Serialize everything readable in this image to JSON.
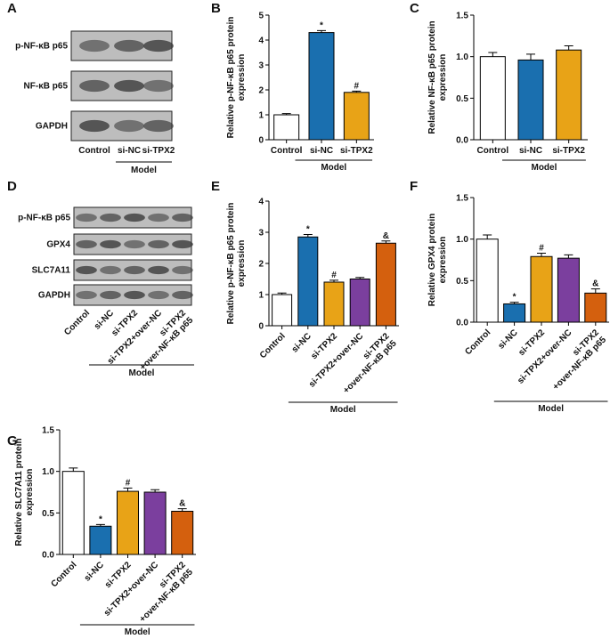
{
  "blots": [
    {
      "panel": "A",
      "rows": [
        "p-NF-κB p65",
        "NF-κB p65",
        "GAPDH"
      ],
      "lanes": [
        "Control",
        "si-NC",
        "si-TPX2"
      ],
      "group_label": "Model"
    },
    {
      "panel": "D",
      "rows": [
        "p-NF-κB p65",
        "GPX4",
        "SLC7A11",
        "GAPDH"
      ],
      "lanes": [
        "Control",
        "si-NC",
        "si-TPX2",
        "si-TPX2+over-NC",
        "si-TPX2\n+over-NF-κB p65"
      ],
      "group_label": "Model"
    }
  ],
  "chart_data": [
    {
      "type": "bar",
      "panel": "B",
      "y_label": "Relative p-NF-κB p65 protein expression",
      "categories": [
        "Control",
        "si-NC",
        "si-TPX2"
      ],
      "group_label": "Model",
      "values": [
        1.0,
        4.3,
        1.9
      ],
      "errors": [
        0.05,
        0.08,
        0.05
      ],
      "value_annotations": [
        null,
        "*",
        "#"
      ],
      "colors": [
        "#ffffff",
        "#1a6faf",
        "#e8a317"
      ],
      "ylim": [
        0,
        5
      ],
      "yticks": [
        0,
        1,
        2,
        3,
        4,
        5
      ],
      "rotate_labels": false
    },
    {
      "type": "bar",
      "panel": "C",
      "y_label": "Relative NF-κB p65 protein expression",
      "categories": [
        "Control",
        "si-NC",
        "si-TPX2"
      ],
      "group_label": "Model",
      "values": [
        1.0,
        0.96,
        1.08
      ],
      "errors": [
        0.05,
        0.07,
        0.05
      ],
      "value_annotations": [
        null,
        null,
        null
      ],
      "colors": [
        "#ffffff",
        "#1a6faf",
        "#e8a317"
      ],
      "ylim": [
        0,
        1.5
      ],
      "yticks": [
        {
          "value": 0,
          "label": "0.0"
        },
        0.5,
        {
          "value": 1,
          "label": "1.0"
        },
        1.5
      ],
      "rotate_labels": false
    },
    {
      "type": "bar",
      "panel": "E",
      "y_label": "Relative p-NF-κB p65 protein expression",
      "categories": [
        "Control",
        "si-NC",
        "si-TPX2",
        "si-TPX2+over-NC",
        "si-TPX2\n+over-NF-κB p65"
      ],
      "group_label": "Model",
      "values": [
        1.0,
        2.85,
        1.4,
        1.5,
        2.65
      ],
      "errors": [
        0.05,
        0.08,
        0.06,
        0.05,
        0.07
      ],
      "value_annotations": [
        null,
        "*",
        "#",
        null,
        "&"
      ],
      "colors": [
        "#ffffff",
        "#1a6faf",
        "#e8a317",
        "#7b3f9e",
        "#d4600e"
      ],
      "ylim": [
        0,
        4
      ],
      "yticks": [
        0,
        1,
        2,
        3,
        4
      ],
      "rotate_labels": true
    },
    {
      "type": "bar",
      "panel": "F",
      "y_label": "Relative GPX4 protein expression",
      "categories": [
        "Control",
        "si-NC",
        "si-TPX2",
        "si-TPX2+over-NC",
        "si-TPX2\n+over-NF-κB p65"
      ],
      "group_label": "Model",
      "values": [
        1.0,
        0.22,
        0.79,
        0.77,
        0.35
      ],
      "errors": [
        0.05,
        0.02,
        0.04,
        0.04,
        0.05
      ],
      "value_annotations": [
        null,
        "*",
        "#",
        null,
        "&"
      ],
      "colors": [
        "#ffffff",
        "#1a6faf",
        "#e8a317",
        "#7b3f9e",
        "#d4600e"
      ],
      "ylim": [
        0,
        1.5
      ],
      "yticks": [
        {
          "value": 0,
          "label": "0.0"
        },
        0.5,
        {
          "value": 1,
          "label": "1.0"
        },
        1.5
      ],
      "rotate_labels": true
    },
    {
      "type": "bar",
      "panel": "G",
      "y_label": "Relative SLC7A11 protein expression",
      "categories": [
        "Control",
        "si-NC",
        "si-TPX2",
        "si-TPX2+over-NC",
        "si-TPX2\n+over-NF-κB p65"
      ],
      "group_label": "Model",
      "values": [
        1.0,
        0.34,
        0.76,
        0.75,
        0.52
      ],
      "errors": [
        0.04,
        0.02,
        0.04,
        0.03,
        0.03
      ],
      "value_annotations": [
        null,
        "*",
        "#",
        null,
        "&"
      ],
      "colors": [
        "#ffffff",
        "#1a6faf",
        "#e8a317",
        "#7b3f9e",
        "#d4600e"
      ],
      "ylim": [
        0,
        1.5
      ],
      "yticks": [
        {
          "value": 0,
          "label": "0.0"
        },
        0.5,
        {
          "value": 1,
          "label": "1.0"
        },
        1.5
      ],
      "rotate_labels": true
    }
  ]
}
